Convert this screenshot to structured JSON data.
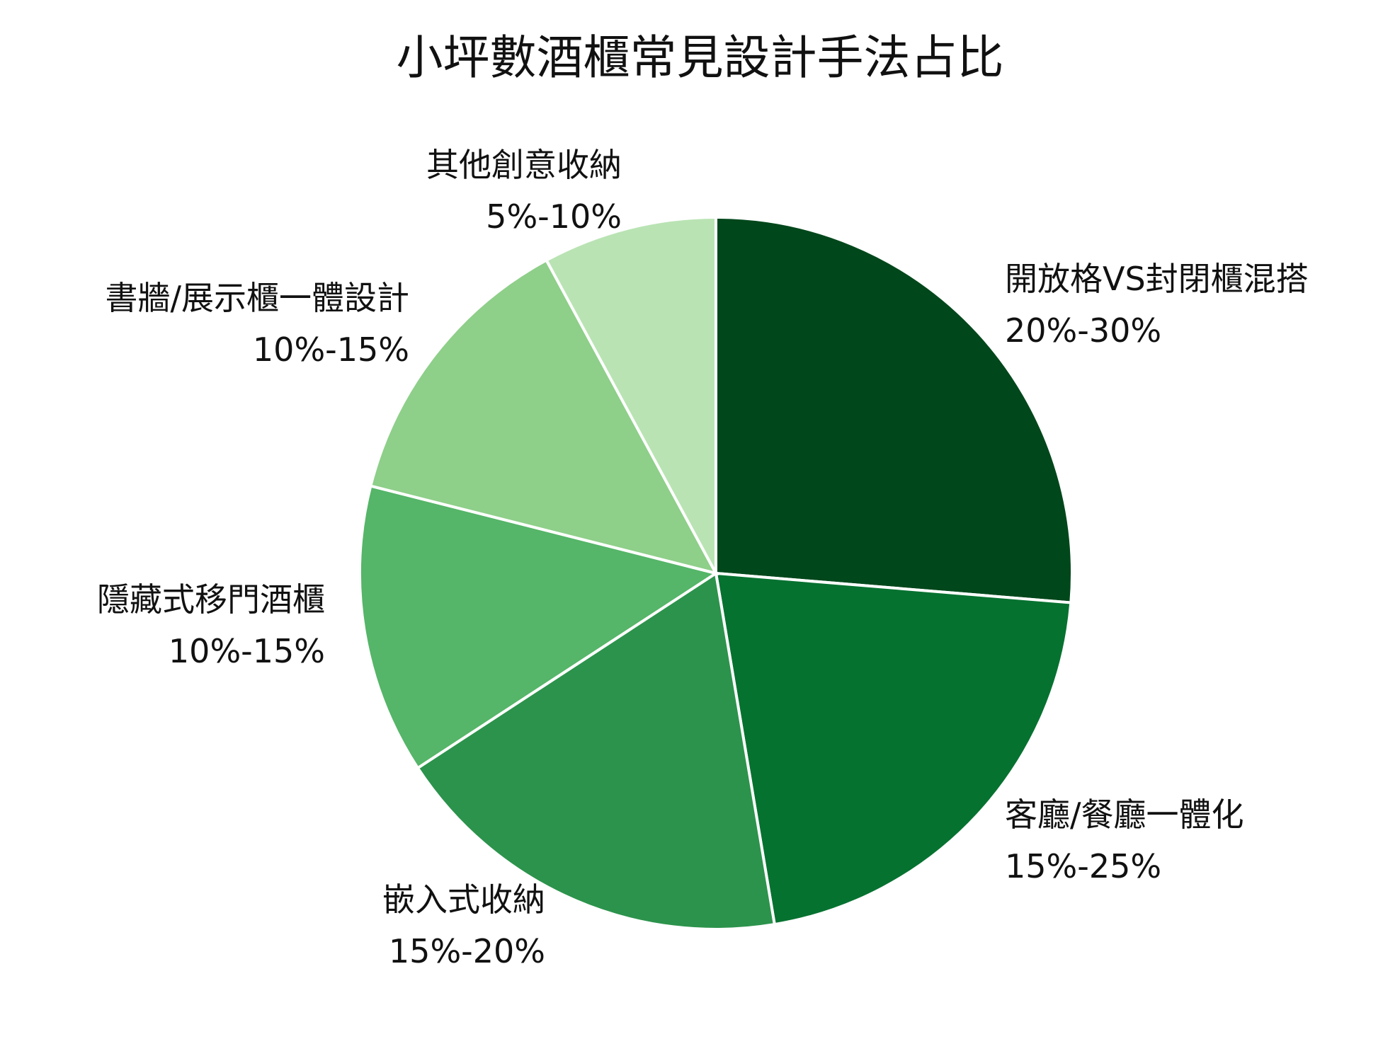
{
  "chart_data": {
    "type": "pie",
    "title": "小坪數酒櫃常見設計手法占比",
    "start_angle": "top",
    "direction": "clockwise",
    "slices": [
      {
        "label": "開放格VS封閉櫃混搭",
        "range": "20%-30%",
        "value": 25,
        "color": "#00471b"
      },
      {
        "label": "客廳/餐廳一體化",
        "range": "15%-25%",
        "value": 20,
        "color": "#067230"
      },
      {
        "label": "嵌入式收納",
        "range": "15%-20%",
        "value": 17.5,
        "color": "#2c934c"
      },
      {
        "label": "隱藏式移門酒櫃",
        "range": "10%-15%",
        "value": 12.5,
        "color": "#55b568"
      },
      {
        "label": "書牆/展示櫃一體設計",
        "range": "10%-15%",
        "value": 12.5,
        "color": "#8ecf89"
      },
      {
        "label": "其他創意收納",
        "range": "5%-10%",
        "value": 7.5,
        "color": "#b9e3b3"
      }
    ]
  }
}
